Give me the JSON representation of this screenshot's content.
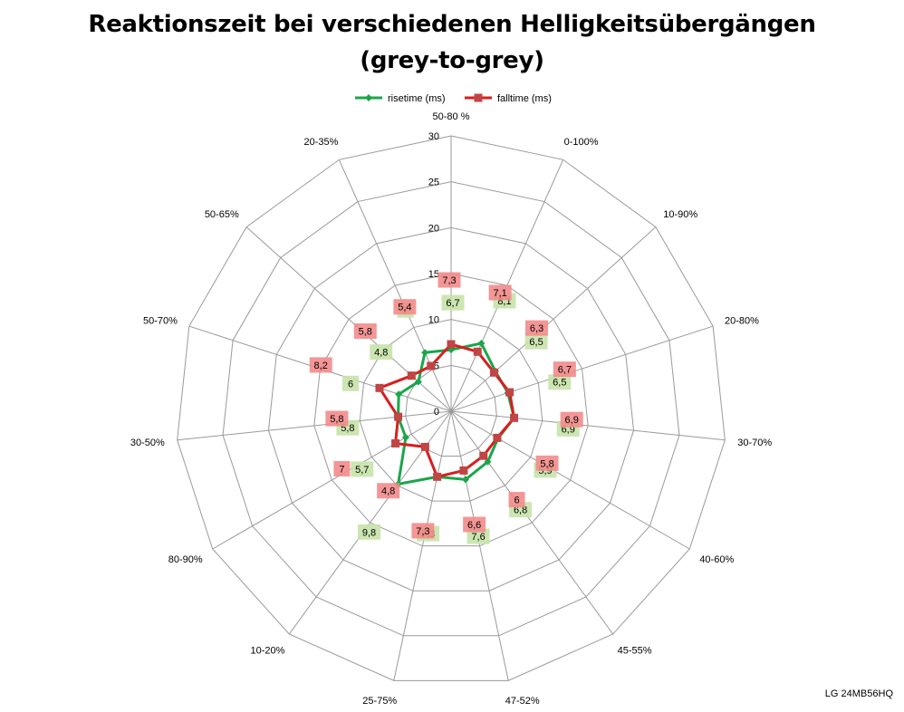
{
  "chart_data": {
    "type": "radar",
    "title_line1": "Reaktionszeit bei verschiedenen Helligkeitsübergängen",
    "title_line2": "(grey-to-grey)",
    "categories": [
      "50-80 %",
      "0-100%",
      "10-90%",
      "20-80%",
      "30-70%",
      "40-60%",
      "45-55%",
      "47-52%",
      "25-75%",
      "10-20%",
      "80-90%",
      "30-50%",
      "50-70%",
      "50-65%",
      "20-35%"
    ],
    "radial_ticks": [
      "0",
      "5",
      "10",
      "15",
      "20",
      "25",
      "30"
    ],
    "rmax": 30,
    "series": [
      {
        "name": "risetime (ms)",
        "color": "#1aa64a",
        "label_bg": "#c6e3a8",
        "values": [
          6.7,
          8.1,
          6.5,
          6.5,
          6.9,
          5.9,
          6.8,
          7.6,
          7.3,
          9.8,
          5.7,
          5.8,
          6.0,
          4.8,
          7.0
        ],
        "labels": [
          "6,7",
          "8,1",
          "6,5",
          "6,5",
          "6,9",
          "5,9",
          "6,8",
          "7,6",
          "7,3",
          "9,8",
          "5,7",
          "5,8",
          "6",
          "4,8",
          "7"
        ]
      },
      {
        "name": "falltime (ms)",
        "color": "#d81e1e",
        "label_bg": "#f38b8b",
        "values": [
          7.3,
          7.1,
          6.3,
          6.7,
          6.9,
          5.8,
          6.0,
          6.6,
          7.3,
          4.8,
          7.0,
          5.8,
          8.2,
          5.8,
          5.4
        ],
        "labels": [
          "7,3",
          "7,1",
          "6,3",
          "6,7",
          "6,9",
          "5,8",
          "6",
          "6,6",
          "7,3",
          "4,8",
          "7",
          "5,8",
          "8,2",
          "5,8",
          "5,4"
        ]
      }
    ],
    "legend_position": "top",
    "footer_text": "LG 24MB56HQ"
  }
}
